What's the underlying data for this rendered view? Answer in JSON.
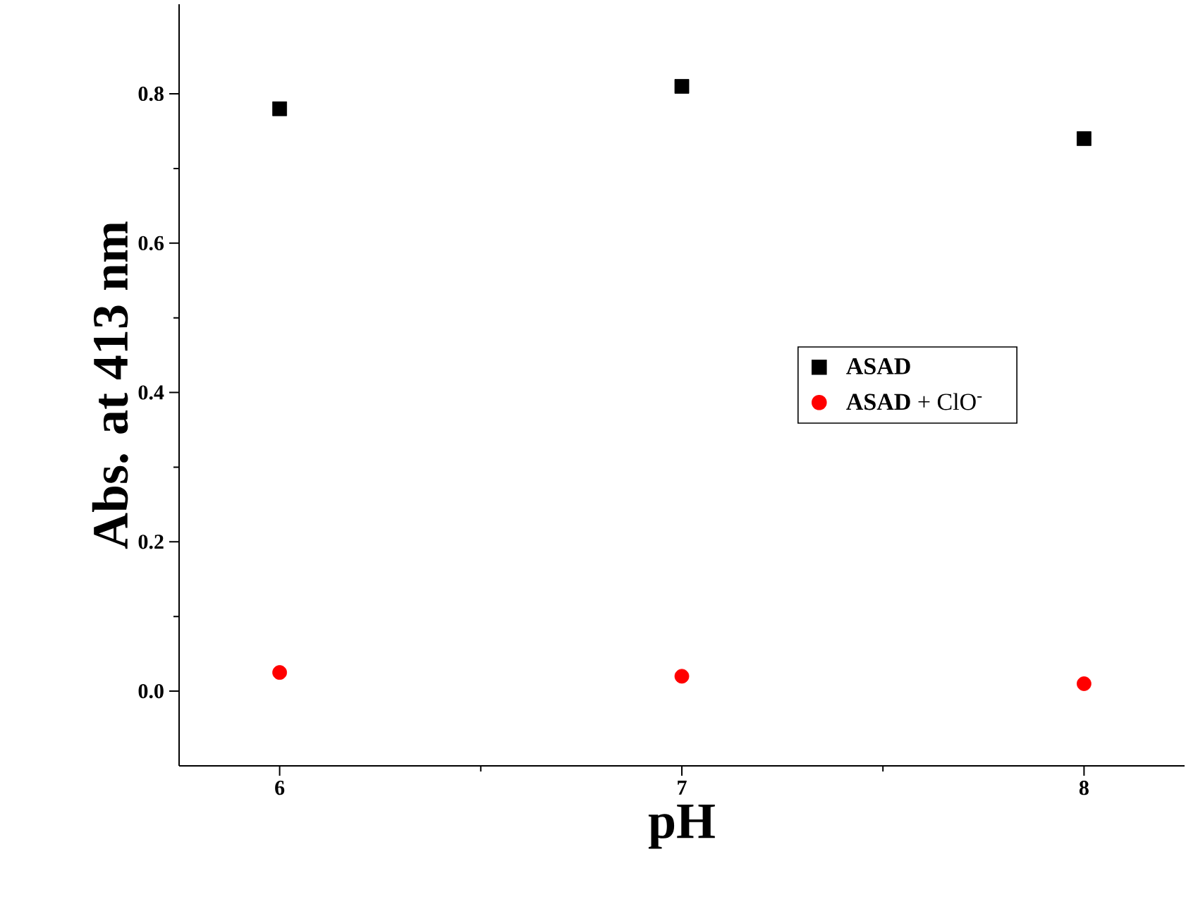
{
  "chart_data": {
    "type": "scatter",
    "xlabel": "pH",
    "ylabel": "Abs. at 413 nm",
    "x": [
      6,
      7,
      8
    ],
    "series": [
      {
        "name": "**ASAD**",
        "color": "#000000",
        "marker": "square",
        "values": [
          0.78,
          0.81,
          0.74
        ]
      },
      {
        "name": "**ASAD** + ClO$^{-}$",
        "color": "#ff0000",
        "marker": "circle",
        "values": [
          0.025,
          0.02,
          0.01
        ]
      }
    ],
    "xlim": [
      5.75,
      8.25
    ],
    "ylim": [
      -0.1,
      0.92
    ],
    "xticks": [
      6,
      7,
      8
    ],
    "yticks": [
      {
        "value": 0,
        "label": "0.0"
      },
      {
        "value": 0.2,
        "label": "0.2"
      },
      {
        "value": 0.4,
        "label": "0.4"
      },
      {
        "value": 0.6,
        "label": "0.6"
      },
      {
        "value": 0.8,
        "label": "0.8"
      }
    ],
    "legend": "right",
    "grid": false
  }
}
